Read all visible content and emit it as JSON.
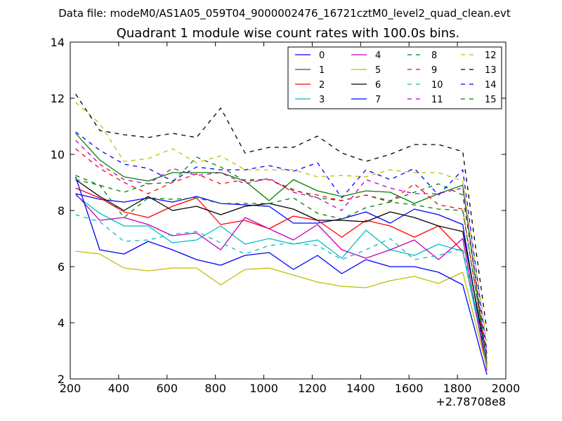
{
  "chart_data": {
    "type": "line",
    "suptitle": "Data file: modeM0/AS1A05_059T04_9000002476_16721cztM0_level2_quad_clean.evt",
    "title": "Quadrant 1 module wise count rates with 100.0s bins.",
    "xlabel": "",
    "ylabel": "",
    "x_offset_label": "+2.78708e8",
    "xlim": [
      200,
      2000
    ],
    "ylim": [
      2,
      14
    ],
    "xticks": [
      200,
      400,
      600,
      800,
      1000,
      1200,
      1400,
      1600,
      1800,
      2000
    ],
    "yticks": [
      2,
      4,
      6,
      8,
      10,
      12,
      14
    ],
    "x": [
      222,
      322,
      422,
      522,
      622,
      722,
      822,
      922,
      1022,
      1122,
      1222,
      1322,
      1422,
      1522,
      1622,
      1722,
      1822,
      1922
    ],
    "legend_location": "top-right",
    "series": [
      {
        "name": "0",
        "color": "#0000ff",
        "dash": "solid",
        "values": [
          8.6,
          8.4,
          8.3,
          8.45,
          8.3,
          8.5,
          8.25,
          8.2,
          8.15,
          7.55,
          7.55,
          7.7,
          7.95,
          7.55,
          8.05,
          7.85,
          7.5,
          2.4
        ]
      },
      {
        "name": "1",
        "color": "#008000",
        "dash": "solid",
        "values": [
          10.75,
          9.8,
          9.2,
          9.05,
          9.35,
          9.35,
          9.35,
          9.05,
          8.35,
          9.1,
          8.7,
          8.5,
          8.7,
          8.65,
          8.25,
          8.6,
          8.9,
          2.55
        ]
      },
      {
        "name": "2",
        "color": "#ff0000",
        "dash": "solid",
        "values": [
          8.8,
          8.45,
          7.95,
          7.75,
          8.15,
          8.45,
          7.5,
          7.65,
          7.35,
          7.8,
          7.65,
          7.05,
          7.65,
          7.45,
          7.05,
          7.45,
          6.55,
          2.5
        ]
      },
      {
        "name": "3",
        "color": "#00bfbf",
        "dash": "solid",
        "values": [
          8.55,
          7.9,
          7.45,
          7.45,
          6.85,
          6.95,
          7.45,
          6.8,
          7.0,
          6.8,
          6.95,
          6.3,
          7.3,
          6.6,
          6.4,
          6.8,
          6.55,
          2.45
        ]
      },
      {
        "name": "4",
        "color": "#bf00bf",
        "dash": "solid",
        "values": [
          8.6,
          7.65,
          7.75,
          7.5,
          7.1,
          7.2,
          6.6,
          7.75,
          7.35,
          6.95,
          7.5,
          6.6,
          6.3,
          6.6,
          6.95,
          6.25,
          7.0,
          2.3
        ]
      },
      {
        "name": "5",
        "color": "#bfbf00",
        "dash": "solid",
        "values": [
          6.55,
          6.45,
          5.95,
          5.85,
          5.95,
          5.95,
          5.35,
          5.9,
          5.95,
          5.7,
          5.45,
          5.3,
          5.25,
          5.5,
          5.65,
          5.4,
          5.8,
          2.4
        ]
      },
      {
        "name": "6",
        "color": "#000000",
        "dash": "solid",
        "values": [
          9.1,
          8.5,
          8.0,
          8.5,
          8.0,
          8.15,
          7.85,
          8.15,
          8.25,
          8.05,
          7.65,
          7.65,
          7.6,
          7.95,
          7.75,
          7.45,
          7.25,
          2.7
        ]
      },
      {
        "name": "7",
        "color": "#0000ff",
        "dash": "solid",
        "values": [
          9.2,
          6.6,
          6.45,
          6.9,
          6.6,
          6.25,
          6.05,
          6.4,
          6.5,
          5.9,
          6.4,
          5.75,
          6.25,
          6.0,
          6.0,
          5.8,
          5.35,
          2.15
        ]
      },
      {
        "name": "8",
        "color": "#008000",
        "dash": "dashed",
        "values": [
          9.1,
          8.9,
          8.65,
          8.95,
          9.0,
          9.9,
          9.55,
          9.05,
          9.1,
          8.75,
          8.45,
          8.35,
          8.55,
          8.35,
          8.65,
          8.95,
          8.55,
          2.9
        ]
      },
      {
        "name": "9",
        "color": "#ff0000",
        "dash": "dashed",
        "values": [
          10.2,
          9.5,
          9.0,
          8.6,
          9.0,
          9.3,
          8.95,
          9.1,
          9.1,
          8.7,
          8.55,
          8.35,
          8.55,
          8.3,
          8.95,
          8.2,
          8.05,
          2.7
        ]
      },
      {
        "name": "10",
        "color": "#00bfbf",
        "dash": "dashed",
        "values": [
          7.85,
          7.6,
          6.9,
          6.95,
          7.15,
          7.25,
          6.85,
          6.45,
          6.75,
          6.85,
          6.75,
          6.25,
          6.6,
          7.0,
          6.25,
          6.4,
          6.65,
          2.7
        ]
      },
      {
        "name": "11",
        "color": "#bf00bf",
        "dash": "dashed",
        "values": [
          10.5,
          9.65,
          9.1,
          8.95,
          9.5,
          9.25,
          9.35,
          8.95,
          9.15,
          8.65,
          8.45,
          8.0,
          9.1,
          8.8,
          8.6,
          8.6,
          8.8,
          2.85
        ]
      },
      {
        "name": "12",
        "color": "#bfbf00",
        "dash": "dashed",
        "values": [
          11.85,
          11.1,
          9.75,
          9.85,
          10.2,
          9.7,
          9.95,
          9.45,
          9.45,
          9.45,
          9.2,
          9.25,
          9.2,
          9.45,
          9.35,
          9.35,
          9.05,
          3.35
        ]
      },
      {
        "name": "13",
        "color": "#000000",
        "dash": "dashed",
        "values": [
          12.15,
          10.85,
          10.7,
          10.6,
          10.75,
          10.6,
          11.65,
          10.05,
          10.25,
          10.25,
          10.65,
          10.05,
          9.75,
          10.0,
          10.35,
          10.35,
          10.1,
          3.7
        ]
      },
      {
        "name": "14",
        "color": "#0000ff",
        "dash": "dashed",
        "values": [
          10.8,
          10.15,
          9.65,
          9.5,
          9.05,
          9.55,
          9.45,
          9.45,
          9.6,
          9.4,
          9.7,
          8.45,
          9.45,
          9.1,
          9.5,
          8.55,
          9.45,
          3.0
        ]
      },
      {
        "name": "15",
        "color": "#008000",
        "dash": "dashed",
        "values": [
          9.25,
          8.9,
          7.75,
          8.45,
          8.4,
          8.45,
          8.25,
          8.25,
          8.25,
          8.45,
          7.9,
          7.7,
          8.1,
          8.3,
          8.2,
          8.05,
          8.0,
          2.7
        ]
      }
    ]
  }
}
